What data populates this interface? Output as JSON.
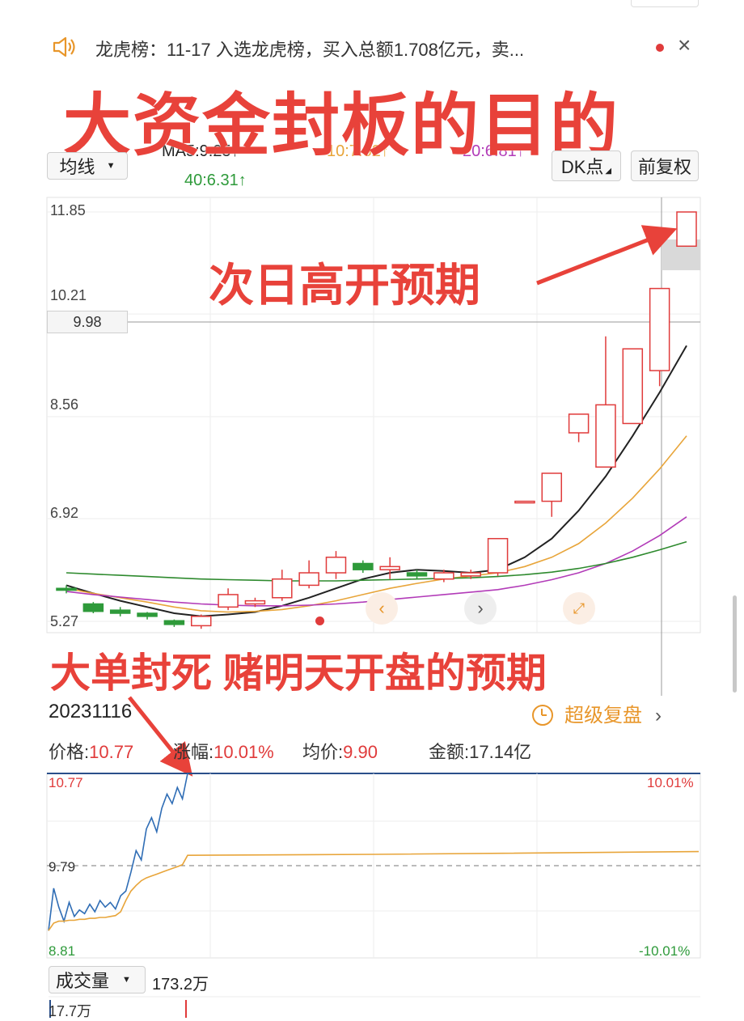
{
  "notice": {
    "text": "龙虎榜：11-17 入选龙虎榜，买入总额1.708亿元，卖...",
    "close": "×"
  },
  "overlay_title": "大资金封板的目的",
  "ma_bar": {
    "ma5": "MA5:9.25↑",
    "ma10": "10:7.82↑",
    "ma20": "20:6.81↑",
    "ma40": "40:6.31↑"
  },
  "controls": {
    "indicator": "均线",
    "dk": "DK点",
    "fq": "前复权"
  },
  "kline_axis": [
    "11.85",
    "10.21",
    "8.56",
    "6.92",
    "5.27"
  ],
  "hover_price": "9.98",
  "annotations": {
    "next_day": "次日高开预期",
    "seal": "大单封死 赌明天开盘的预期"
  },
  "intraday": {
    "date": "20231116",
    "replay": "超级复盘",
    "price_label": "价格:",
    "price": "10.77",
    "change_label": "涨幅:",
    "change": "10.01%",
    "avg_label": "均价:",
    "avg": "9.90",
    "amount_label": "金额:",
    "amount": "17.14亿",
    "axis_top": "10.77",
    "axis_mid": "9.79",
    "axis_bottom": "8.81",
    "pct_top": "10.01%",
    "pct_bottom": "-10.01%"
  },
  "volume": {
    "label": "成交量",
    "value": "173.2万",
    "axis": "17.7万"
  },
  "colors": {
    "up": "#e03b3b",
    "down": "#2e9a3a",
    "annotation": "#e8423a",
    "ma5": "#222222",
    "ma10": "#e8a53a",
    "ma20": "#b23bb8",
    "ma40": "#2e8a2e"
  },
  "chart_data": [
    {
      "type": "candlestick",
      "title": "",
      "ylim": [
        5.27,
        11.85
      ],
      "y_ticks": [
        11.85,
        10.21,
        8.56,
        6.92,
        5.27
      ],
      "candles": [
        {
          "open": 5.8,
          "close": 5.77,
          "high": 5.85,
          "low": 5.72
        },
        {
          "open": 5.55,
          "close": 5.43,
          "high": 5.58,
          "low": 5.4
        },
        {
          "open": 5.45,
          "close": 5.4,
          "high": 5.5,
          "low": 5.35
        },
        {
          "open": 5.4,
          "close": 5.35,
          "high": 5.42,
          "low": 5.3
        },
        {
          "open": 5.28,
          "close": 5.22,
          "high": 5.3,
          "low": 5.18
        },
        {
          "open": 5.2,
          "close": 5.35,
          "high": 5.38,
          "low": 5.15
        },
        {
          "open": 5.5,
          "close": 5.7,
          "high": 5.8,
          "low": 5.45
        },
        {
          "open": 5.55,
          "close": 5.6,
          "high": 5.65,
          "low": 5.5
        },
        {
          "open": 5.65,
          "close": 5.95,
          "high": 6.1,
          "low": 5.6
        },
        {
          "open": 5.85,
          "close": 6.05,
          "high": 6.25,
          "low": 5.8
        },
        {
          "open": 6.05,
          "close": 6.3,
          "high": 6.4,
          "low": 5.95
        },
        {
          "open": 6.2,
          "close": 6.1,
          "high": 6.25,
          "low": 6.05
        },
        {
          "open": 6.1,
          "close": 6.15,
          "high": 6.3,
          "low": 5.95
        },
        {
          "open": 6.05,
          "close": 6.0,
          "high": 6.1,
          "low": 5.95
        },
        {
          "open": 5.95,
          "close": 6.05,
          "high": 6.1,
          "low": 5.9
        },
        {
          "open": 6.0,
          "close": 6.05,
          "high": 6.1,
          "low": 5.95
        },
        {
          "open": 6.05,
          "close": 6.6,
          "high": 6.6,
          "low": 6.0
        },
        {
          "open": 7.2,
          "close": 7.2,
          "high": 7.2,
          "low": 7.2
        },
        {
          "open": 7.2,
          "close": 7.65,
          "high": 7.65,
          "low": 6.95
        },
        {
          "open": 8.3,
          "close": 8.6,
          "high": 8.6,
          "low": 8.15
        },
        {
          "open": 7.75,
          "close": 8.75,
          "high": 9.85,
          "low": 7.75
        },
        {
          "open": 8.45,
          "close": 9.65,
          "high": 9.65,
          "low": 8.45
        },
        {
          "open": 9.3,
          "close": 10.62,
          "high": 10.62,
          "low": 9.05
        },
        {
          "open": 11.3,
          "close": 11.85,
          "high": 11.85,
          "low": 11.3
        }
      ],
      "series": [
        {
          "name": "MA5",
          "values": [
            5.85,
            5.72,
            5.6,
            5.5,
            5.4,
            5.35,
            5.38,
            5.42,
            5.52,
            5.65,
            5.8,
            5.95,
            6.05,
            6.1,
            6.08,
            6.05,
            6.1,
            6.3,
            6.6,
            7.05,
            7.6,
            8.25,
            8.95,
            9.7
          ]
        },
        {
          "name": "MA10",
          "values": [
            5.8,
            5.72,
            5.65,
            5.58,
            5.5,
            5.44,
            5.42,
            5.43,
            5.46,
            5.52,
            5.6,
            5.7,
            5.8,
            5.88,
            5.95,
            6.0,
            6.05,
            6.15,
            6.3,
            6.52,
            6.85,
            7.25,
            7.72,
            8.25
          ]
        },
        {
          "name": "MA20",
          "values": [
            5.75,
            5.7,
            5.66,
            5.62,
            5.58,
            5.55,
            5.53,
            5.52,
            5.52,
            5.53,
            5.55,
            5.58,
            5.62,
            5.66,
            5.7,
            5.74,
            5.78,
            5.85,
            5.94,
            6.05,
            6.2,
            6.4,
            6.65,
            6.95
          ]
        },
        {
          "name": "MA40",
          "values": [
            6.05,
            6.03,
            6.01,
            5.99,
            5.97,
            5.95,
            5.94,
            5.93,
            5.92,
            5.92,
            5.92,
            5.93,
            5.94,
            5.95,
            5.96,
            5.97,
            5.99,
            6.02,
            6.06,
            6.12,
            6.2,
            6.3,
            6.42,
            6.55
          ]
        }
      ]
    },
    {
      "type": "line",
      "title": "",
      "ylim": [
        8.81,
        10.77
      ],
      "y_ticks": [
        10.77,
        9.79,
        8.81
      ],
      "series": [
        {
          "name": "价格",
          "values": [
            9.1,
            9.55,
            9.35,
            9.2,
            9.4,
            9.25,
            9.32,
            9.28,
            9.38,
            9.3,
            9.42,
            9.35,
            9.4,
            9.33,
            9.47,
            9.52,
            9.72,
            9.95,
            9.85,
            10.18,
            10.3,
            10.15,
            10.4,
            10.55,
            10.45,
            10.62,
            10.5,
            10.77
          ]
        },
        {
          "name": "均价",
          "values": [
            9.1,
            9.18,
            9.2,
            9.2,
            9.21,
            9.21,
            9.22,
            9.22,
            9.23,
            9.23,
            9.24,
            9.24,
            9.25,
            9.26,
            9.3,
            9.42,
            9.52,
            9.58,
            9.63,
            9.66,
            9.68,
            9.7,
            9.72,
            9.74,
            9.76,
            9.78,
            9.8,
            9.9
          ]
        }
      ]
    }
  ]
}
